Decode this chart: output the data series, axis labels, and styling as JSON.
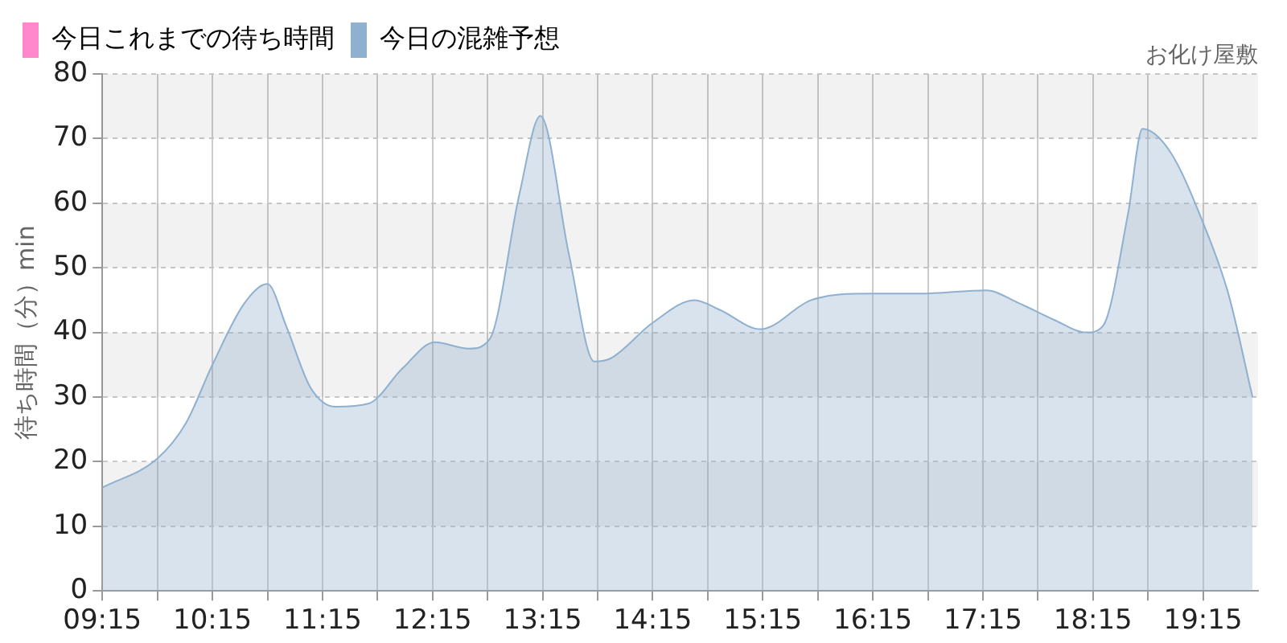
{
  "chart_data": {
    "type": "area",
    "ylabel": "待ち時間（分）min",
    "annotations": [
      "お化け屋敷"
    ],
    "x": [
      9.25,
      9.75,
      10.01,
      10.25,
      10.54,
      10.75,
      10.92,
      11.14,
      11.37,
      11.67,
      11.98,
      12.27,
      12.58,
      12.77,
      13.04,
      13.23,
      13.49,
      13.72,
      13.87,
      14.25,
      14.63,
      14.86,
      15.23,
      15.69,
      16.22,
      16.67,
      17.28,
      17.58,
      17.89,
      18.19,
      18.34,
      18.57,
      18.7,
      18.95,
      19.25,
      19.48,
      19.7
    ],
    "series": [
      {
        "name": "今日これまでの待ち時間",
        "color": "#ff88cc",
        "type": "line",
        "values": [
          null,
          null,
          null,
          null,
          null,
          null,
          null,
          null,
          null,
          null,
          null,
          null,
          null,
          null,
          null,
          null,
          null,
          null,
          null,
          null,
          null,
          null,
          null,
          null,
          null,
          null,
          null,
          null,
          null,
          null,
          null,
          null,
          null,
          null,
          null,
          null,
          null
        ]
      },
      {
        "name": "今日の混雑予想",
        "color": "#8fb0cf",
        "type": "area",
        "values": [
          16,
          20.5,
          26,
          35,
          44.5,
          47.5,
          41,
          31.5,
          28.5,
          29,
          34.5,
          38.5,
          37.5,
          39,
          61.5,
          73.5,
          52,
          35.5,
          36,
          41.5,
          45,
          43.5,
          40.5,
          45,
          46,
          46,
          46.5,
          44.5,
          42,
          40,
          41,
          58.5,
          71.5,
          68,
          57,
          46,
          30
        ]
      }
    ],
    "xlim": [
      9.25,
      19.75
    ],
    "xticks": [
      {
        "value": 9.25,
        "label": "09:15"
      },
      {
        "value": 9.75,
        "label": null
      },
      {
        "value": 10.25,
        "label": "10:15"
      },
      {
        "value": 10.75,
        "label": null
      },
      {
        "value": 11.25,
        "label": "11:15"
      },
      {
        "value": 11.75,
        "label": null
      },
      {
        "value": 12.25,
        "label": "12:15"
      },
      {
        "value": 12.75,
        "label": null
      },
      {
        "value": 13.25,
        "label": "13:15"
      },
      {
        "value": 13.75,
        "label": null
      },
      {
        "value": 14.25,
        "label": "14:15"
      },
      {
        "value": 14.75,
        "label": null
      },
      {
        "value": 15.25,
        "label": "15:15"
      },
      {
        "value": 15.75,
        "label": null
      },
      {
        "value": 16.25,
        "label": "16:15"
      },
      {
        "value": 16.75,
        "label": null
      },
      {
        "value": 17.25,
        "label": "17:15"
      },
      {
        "value": 17.75,
        "label": null
      },
      {
        "value": 18.25,
        "label": "18:15"
      },
      {
        "value": 18.75,
        "label": null
      },
      {
        "value": 19.25,
        "label": "19:15"
      }
    ],
    "ylim": [
      0,
      80
    ],
    "yticks": [
      0,
      10,
      20,
      30,
      40,
      50,
      60,
      70,
      80
    ],
    "grid": true,
    "legend": "top left",
    "marker": "none"
  }
}
